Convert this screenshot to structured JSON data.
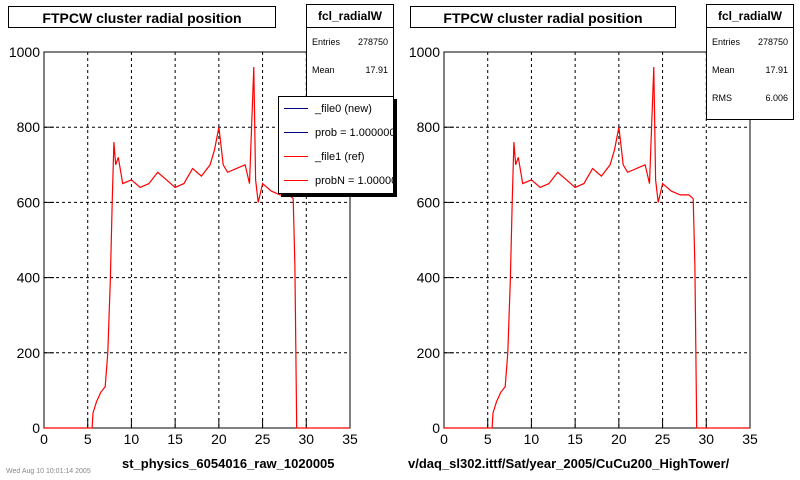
{
  "chart_data": [
    {
      "type": "line",
      "title": "FTPCW cluster radial position",
      "xlabel": "st_physics_6054016_raw_1020005",
      "ylabel": "",
      "xlim": [
        0,
        35
      ],
      "ylim": [
        0,
        1000
      ],
      "xticks": [
        0,
        5,
        10,
        15,
        20,
        25,
        30,
        35
      ],
      "yticks": [
        0,
        200,
        400,
        600,
        800,
        1000
      ],
      "grid": true,
      "stats": {
        "name": "fcl_radialW",
        "entries_label": "Entries",
        "entries": "278750",
        "mean_label": "Mean",
        "mean": "17.91"
      },
      "legend": {
        "position": "top-right",
        "entries": [
          {
            "label": "_file0 (new)",
            "color": "#000080"
          },
          {
            "label": "prob = 1.000000",
            "color": "#000080"
          },
          {
            "label": "_file1 (ref)",
            "color": "#ff0000"
          },
          {
            "label": "probN = 1.000000",
            "color": "#ff0000"
          }
        ]
      },
      "series": [
        {
          "color": "#ff0000",
          "x": [
            0,
            5.5,
            5.6,
            6,
            6.5,
            7,
            7.3,
            7.6,
            7.8,
            8,
            8.2,
            8.5,
            9,
            10,
            11,
            12,
            13,
            14,
            15,
            16,
            17,
            18,
            19,
            19.5,
            20,
            20.5,
            21,
            22,
            23,
            23.5,
            24,
            24.2,
            24.5,
            25,
            26,
            27,
            28,
            28.5,
            28.7,
            28.9,
            29,
            35
          ],
          "y": [
            0,
            0,
            40,
            70,
            95,
            110,
            200,
            400,
            600,
            760,
            700,
            720,
            650,
            660,
            640,
            650,
            680,
            660,
            640,
            650,
            690,
            670,
            700,
            740,
            800,
            700,
            680,
            690,
            700,
            650,
            960,
            660,
            600,
            650,
            630,
            620,
            620,
            610,
            430,
            0,
            0,
            0
          ]
        }
      ]
    },
    {
      "type": "line",
      "title": "FTPCW cluster radial position",
      "xlabel": "v/daq_sl302.ittf/Sat/year_2005/CuCu200_HighTower/",
      "ylabel": "",
      "xlim": [
        0,
        35
      ],
      "ylim": [
        0,
        1000
      ],
      "xticks": [
        0,
        5,
        10,
        15,
        20,
        25,
        30,
        35
      ],
      "yticks": [
        0,
        200,
        400,
        600,
        800,
        1000
      ],
      "grid": true,
      "stats": {
        "name": "fcl_radialW",
        "entries_label": "Entries",
        "entries": "278750",
        "mean_label": "Mean",
        "mean": "17.91",
        "rms_label": "RMS",
        "rms": "6.006"
      },
      "series": [
        {
          "color": "#ff0000",
          "x": [
            0,
            5.5,
            5.6,
            6,
            6.5,
            7,
            7.3,
            7.6,
            7.8,
            8,
            8.2,
            8.5,
            9,
            10,
            11,
            12,
            13,
            14,
            15,
            16,
            17,
            18,
            19,
            19.5,
            20,
            20.5,
            21,
            22,
            23,
            23.5,
            24,
            24.2,
            24.5,
            25,
            26,
            27,
            28,
            28.5,
            28.7,
            28.9,
            29,
            35
          ],
          "y": [
            0,
            0,
            40,
            70,
            95,
            110,
            200,
            400,
            600,
            760,
            700,
            720,
            650,
            660,
            640,
            650,
            680,
            660,
            640,
            650,
            690,
            670,
            700,
            740,
            800,
            700,
            680,
            690,
            700,
            650,
            960,
            660,
            600,
            650,
            630,
            620,
            620,
            610,
            430,
            0,
            0,
            0
          ]
        }
      ]
    }
  ],
  "footer": {
    "stamp": "Wed Aug 10 10:01:14 2005"
  }
}
